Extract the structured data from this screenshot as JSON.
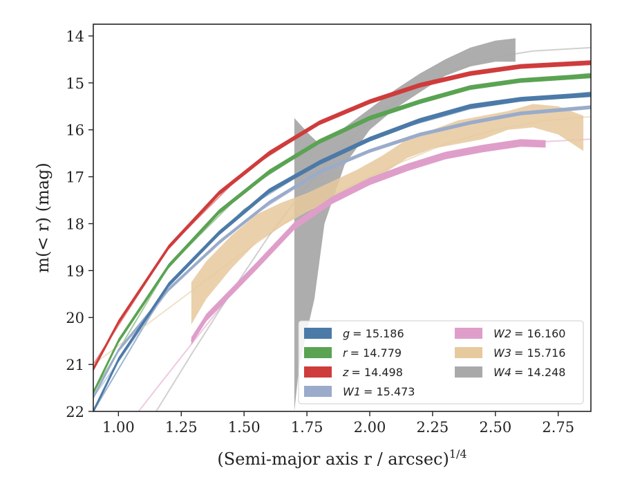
{
  "chart_data": {
    "type": "line",
    "xlabel": "(Semi-major axis r / arcsec)",
    "xlabel_sup": "1/4",
    "ylabel": "m(< r) (mag)",
    "xlim": [
      0.9,
      2.88
    ],
    "ylim": [
      22,
      13.75
    ],
    "y_inverted": true,
    "xticks": [
      1.0,
      1.25,
      1.5,
      1.75,
      2.0,
      2.25,
      2.5,
      2.75
    ],
    "xtick_labels": [
      "1.00",
      "1.25",
      "1.50",
      "1.75",
      "2.00",
      "2.25",
      "2.50",
      "2.75"
    ],
    "yticks": [
      14,
      15,
      16,
      17,
      18,
      19,
      20,
      21,
      22
    ],
    "ytick_labels": [
      "14",
      "15",
      "16",
      "17",
      "18",
      "19",
      "20",
      "21",
      "22"
    ],
    "legend_position": "lower-right",
    "series": [
      {
        "name": "g = 15.186",
        "legend_italic": "g",
        "legend_value": "= 15.186",
        "color": "#4c7aa8",
        "style": "band",
        "x": [
          0.9,
          1.0,
          1.2,
          1.4,
          1.6,
          1.8,
          2.0,
          2.2,
          2.4,
          2.6,
          2.88
        ],
        "y": [
          22.0,
          20.9,
          19.3,
          18.2,
          17.3,
          16.7,
          16.2,
          15.8,
          15.5,
          15.35,
          15.25
        ],
        "band": 0.05,
        "model_x": [
          0.9,
          1.2,
          1.5,
          1.8,
          2.1,
          2.4,
          2.7,
          2.88
        ],
        "model_y": [
          22.0,
          19.3,
          17.7,
          16.7,
          16.0,
          15.55,
          15.3,
          15.2
        ]
      },
      {
        "name": "r = 14.779",
        "legend_italic": "r",
        "legend_value": "= 14.779",
        "color": "#5aa353",
        "style": "band",
        "x": [
          0.9,
          1.0,
          1.2,
          1.4,
          1.6,
          1.8,
          2.0,
          2.2,
          2.4,
          2.6,
          2.88
        ],
        "y": [
          21.6,
          20.5,
          18.9,
          17.75,
          16.9,
          16.25,
          15.75,
          15.4,
          15.1,
          14.95,
          14.85
        ],
        "band": 0.05,
        "model_x": [
          0.9,
          1.2,
          1.5,
          1.8,
          2.1,
          2.4,
          2.7,
          2.88
        ],
        "model_y": [
          21.6,
          18.9,
          17.3,
          16.25,
          15.55,
          15.1,
          14.9,
          14.8
        ]
      },
      {
        "name": "z = 14.498",
        "legend_italic": "z",
        "legend_value": "= 14.498",
        "color": "#cf3c3c",
        "style": "band",
        "x": [
          0.9,
          1.0,
          1.2,
          1.4,
          1.6,
          1.8,
          2.0,
          2.2,
          2.4,
          2.6,
          2.88
        ],
        "y": [
          21.1,
          20.1,
          18.5,
          17.35,
          16.5,
          15.85,
          15.4,
          15.05,
          14.8,
          14.65,
          14.57
        ],
        "band": 0.05,
        "model_x": [
          0.9,
          1.2,
          1.5,
          1.8,
          2.1,
          2.4,
          2.7,
          2.88
        ],
        "model_y": [
          21.0,
          18.5,
          16.9,
          15.85,
          15.2,
          14.8,
          14.62,
          14.55
        ]
      },
      {
        "name": "W1 = 15.473",
        "legend_italic": "W1",
        "legend_value": "= 15.473",
        "color": "#9aabcb",
        "style": "band",
        "x": [
          0.9,
          1.0,
          1.2,
          1.4,
          1.6,
          1.8,
          2.0,
          2.2,
          2.4,
          2.6,
          2.88
        ],
        "y": [
          21.7,
          20.7,
          19.4,
          18.4,
          17.55,
          16.9,
          16.45,
          16.1,
          15.85,
          15.65,
          15.52
        ],
        "band": 0.04,
        "model_x": [
          0.9,
          1.2,
          1.5,
          1.8,
          2.1,
          2.4,
          2.7,
          2.88
        ],
        "model_y": [
          21.7,
          19.4,
          17.95,
          16.9,
          16.25,
          15.85,
          15.6,
          15.5
        ]
      },
      {
        "name": "W2 = 16.160",
        "legend_italic": "W2",
        "legend_value": "= 16.160",
        "color": "#df9ec9",
        "style": "band",
        "x": [
          1.29,
          1.35,
          1.45,
          1.55,
          1.7,
          1.85,
          2.0,
          2.15,
          2.3,
          2.45,
          2.6,
          2.7
        ],
        "y": [
          20.5,
          20.0,
          19.45,
          18.9,
          18.05,
          17.5,
          17.1,
          16.8,
          16.55,
          16.4,
          16.28,
          16.3
        ],
        "band": 0.08,
        "model_x": [
          1.08,
          1.3,
          1.5,
          1.7,
          1.9,
          2.1,
          2.3,
          2.5,
          2.7,
          2.88
        ],
        "model_y": [
          22.0,
          20.5,
          19.15,
          18.1,
          17.35,
          16.9,
          16.6,
          16.4,
          16.25,
          16.2
        ]
      },
      {
        "name": "W3 = 15.716",
        "legend_italic": "W3",
        "legend_value": "= 15.716",
        "color": "#e6c99d",
        "style": "band",
        "x": [
          1.29,
          1.35,
          1.45,
          1.55,
          1.65,
          1.75,
          1.85,
          1.95,
          2.05,
          2.15,
          2.25,
          2.35,
          2.45,
          2.55,
          2.65,
          2.75,
          2.85
        ],
        "y": [
          19.7,
          19.2,
          18.6,
          18.1,
          17.8,
          17.55,
          17.3,
          17.05,
          16.75,
          16.4,
          16.2,
          16.05,
          15.95,
          15.8,
          15.7,
          15.8,
          16.0
        ],
        "band_lo": [
          0.45,
          0.4,
          0.35,
          0.3,
          0.25,
          0.2,
          0.2,
          0.2,
          0.2,
          0.2,
          0.2,
          0.25,
          0.25,
          0.2,
          0.25,
          0.3,
          0.45
        ],
        "band_hi": [
          0.45,
          0.4,
          0.35,
          0.3,
          0.25,
          0.2,
          0.2,
          0.2,
          0.2,
          0.2,
          0.2,
          0.25,
          0.25,
          0.2,
          0.25,
          0.3,
          0.3
        ],
        "model_x": [
          0.9,
          1.1,
          1.3,
          1.5,
          1.7,
          1.9,
          2.1,
          2.3,
          2.5,
          2.7,
          2.88
        ],
        "model_y": [
          21.0,
          20.2,
          19.4,
          18.6,
          17.85,
          17.25,
          16.75,
          16.3,
          16.0,
          15.8,
          15.72
        ]
      },
      {
        "name": "W4 = 14.248",
        "legend_italic": "W4",
        "legend_value": "= 14.248",
        "color": "#a9a9a9",
        "style": "polygon",
        "polygon_x": [
          1.7,
          1.7,
          1.76,
          1.8,
          1.9,
          2.0,
          2.1,
          2.2,
          2.3,
          2.4,
          2.5,
          2.58,
          2.58,
          2.5,
          2.4,
          2.3,
          2.2,
          2.1,
          2.0,
          1.9,
          1.82,
          1.78,
          1.72,
          1.7
        ],
        "polygon_y": [
          22.0,
          15.75,
          16.1,
          16.3,
          15.95,
          15.55,
          15.15,
          14.8,
          14.5,
          14.25,
          14.1,
          14.05,
          14.55,
          14.55,
          14.65,
          14.85,
          15.2,
          15.55,
          16.0,
          16.75,
          18.0,
          19.6,
          21.0,
          22.0
        ],
        "model_x": [
          1.15,
          1.3,
          1.45,
          1.6,
          1.75,
          1.9,
          2.05,
          2.2,
          2.35,
          2.5,
          2.65,
          2.88
        ],
        "model_y": [
          22.0,
          20.7,
          19.45,
          18.25,
          17.2,
          16.3,
          15.6,
          15.05,
          14.7,
          14.45,
          14.32,
          14.25
        ]
      }
    ]
  }
}
